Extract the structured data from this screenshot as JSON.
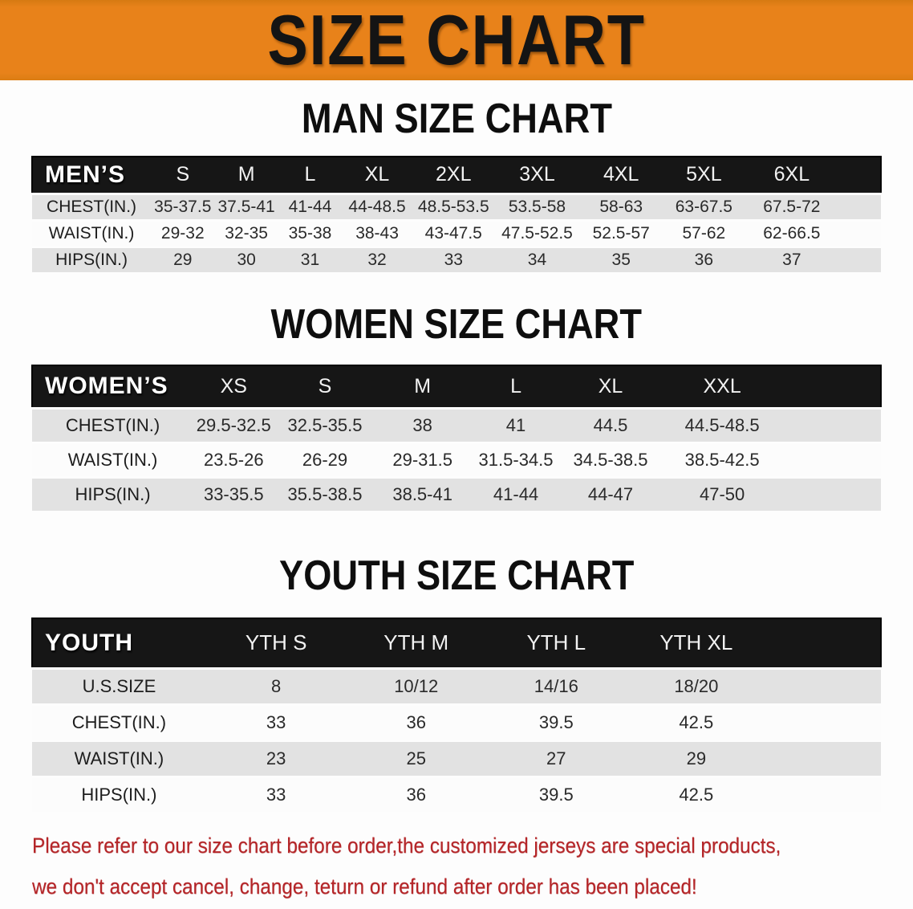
{
  "banner": {
    "title": "SIZE CHART"
  },
  "theme": {
    "banner_orange": "#E8821A",
    "table_header_bg": "#161616",
    "row_stripe": "#E2E2E2",
    "disclaimer_red": "#B52528"
  },
  "sections": [
    {
      "id": "men",
      "heading": "MAN SIZE CHART",
      "table": {
        "corner_label": "MEN’S",
        "columns": [
          "S",
          "M",
          "L",
          "XL",
          "2XL",
          "3XL",
          "4XL",
          "5XL",
          "6XL"
        ],
        "rows": [
          {
            "label": "CHEST(IN.)",
            "values": [
              "35-37.5",
              "37.5-41",
              "41-44",
              "44-48.5",
              "48.5-53.5",
              "53.5-58",
              "58-63",
              "63-67.5",
              "67.5-72"
            ]
          },
          {
            "label": "WAIST(IN.)",
            "values": [
              "29-32",
              "32-35",
              "35-38",
              "38-43",
              "43-47.5",
              "47.5-52.5",
              "52.5-57",
              "57-62",
              "62-66.5"
            ]
          },
          {
            "label": "HIPS(IN.)",
            "values": [
              "29",
              "30",
              "31",
              "32",
              "33",
              "34",
              "35",
              "36",
              "37"
            ]
          }
        ]
      }
    },
    {
      "id": "women",
      "heading": "WOMEN SIZE CHART",
      "table": {
        "corner_label": "WOMEN’S",
        "columns": [
          "XS",
          "S",
          "M",
          "L",
          "XL",
          "XXL"
        ],
        "rows": [
          {
            "label": "CHEST(IN.)",
            "values": [
              "29.5-32.5",
              "32.5-35.5",
              "38",
              "41",
              "44.5",
              "44.5-48.5"
            ]
          },
          {
            "label": "WAIST(IN.)",
            "values": [
              "23.5-26",
              "26-29",
              "29-31.5",
              "31.5-34.5",
              "34.5-38.5",
              "38.5-42.5"
            ]
          },
          {
            "label": "HIPS(IN.)",
            "values": [
              "33-35.5",
              "35.5-38.5",
              "38.5-41",
              "41-44",
              "44-47",
              "47-50"
            ]
          }
        ]
      }
    },
    {
      "id": "youth",
      "heading": "YOUTH SIZE CHART",
      "table": {
        "corner_label": "YOUTH",
        "columns": [
          "YTH S",
          "YTH M",
          "YTH L",
          "YTH XL"
        ],
        "rows": [
          {
            "label": "U.S.SIZE",
            "values": [
              "8",
              "10/12",
              "14/16",
              "18/20"
            ]
          },
          {
            "label": "CHEST(IN.)",
            "values": [
              "33",
              "36",
              "39.5",
              "42.5"
            ]
          },
          {
            "label": "WAIST(IN.)",
            "values": [
              "23",
              "25",
              "27",
              "29"
            ]
          },
          {
            "label": "HIPS(IN.)",
            "values": [
              "33",
              "36",
              "39.5",
              "42.5"
            ]
          }
        ]
      }
    }
  ],
  "disclaimer": {
    "lines": [
      "Please refer to our size chart before order,the customized jerseys are special products,",
      "we don't accept cancel, change, teturn or refund after order has been placed!"
    ]
  }
}
